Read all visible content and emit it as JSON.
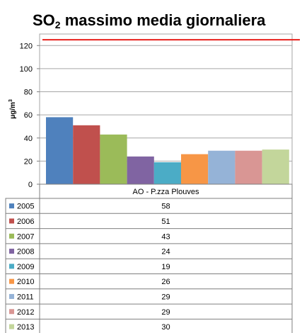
{
  "chart_data": {
    "type": "bar",
    "title": {
      "prefix": "SO",
      "subscript": "2",
      "suffix": " massimo media giornaliera"
    },
    "ylabel": {
      "base": "μg/m",
      "sup": "3"
    },
    "ylim": [
      0,
      130
    ],
    "yticks": [
      0,
      20,
      40,
      60,
      80,
      100,
      120
    ],
    "category": "AO - P.zza Plouves",
    "limit_line": {
      "value": 125,
      "color": "#e8201c"
    },
    "grid": true,
    "legend": "table-below",
    "series": [
      {
        "name": "2005",
        "value": 58,
        "color": "#4f81bd"
      },
      {
        "name": "2006",
        "value": 51,
        "color": "#c0504d"
      },
      {
        "name": "2007",
        "value": 43,
        "color": "#9bbb59"
      },
      {
        "name": "2008",
        "value": 24,
        "color": "#8064a2"
      },
      {
        "name": "2009",
        "value": 19,
        "color": "#4bacc6"
      },
      {
        "name": "2010",
        "value": 26,
        "color": "#f79646"
      },
      {
        "name": "2011",
        "value": 29,
        "color": "#95b3d7"
      },
      {
        "name": "2012",
        "value": 29,
        "color": "#d99694"
      },
      {
        "name": "2013",
        "value": 30,
        "color": "#c3d69b"
      }
    ]
  }
}
